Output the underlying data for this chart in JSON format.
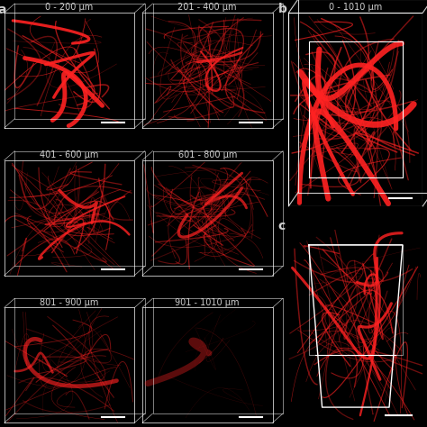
{
  "background_color": "#000000",
  "text_color": "#d0d0d0",
  "panel_a_label": "a",
  "panel_b_label": "b",
  "panel_c_label": "c",
  "labels_left": [
    "0 - 200 μm",
    "201 - 400 μm",
    "401 - 600 μm",
    "601 - 800 μm",
    "801 - 900 μm",
    "901 - 1010 μm"
  ],
  "label_right_top": "0 - 1010 μm",
  "box_color": "#ffffff",
  "vessel_color": "#cc0000",
  "vessel_color2": "#ff2222",
  "scale_bar_color": "#ffffff",
  "font_size_label": 7,
  "font_size_panel": 9,
  "figsize": [
    4.74,
    4.74
  ],
  "dpi": 100
}
